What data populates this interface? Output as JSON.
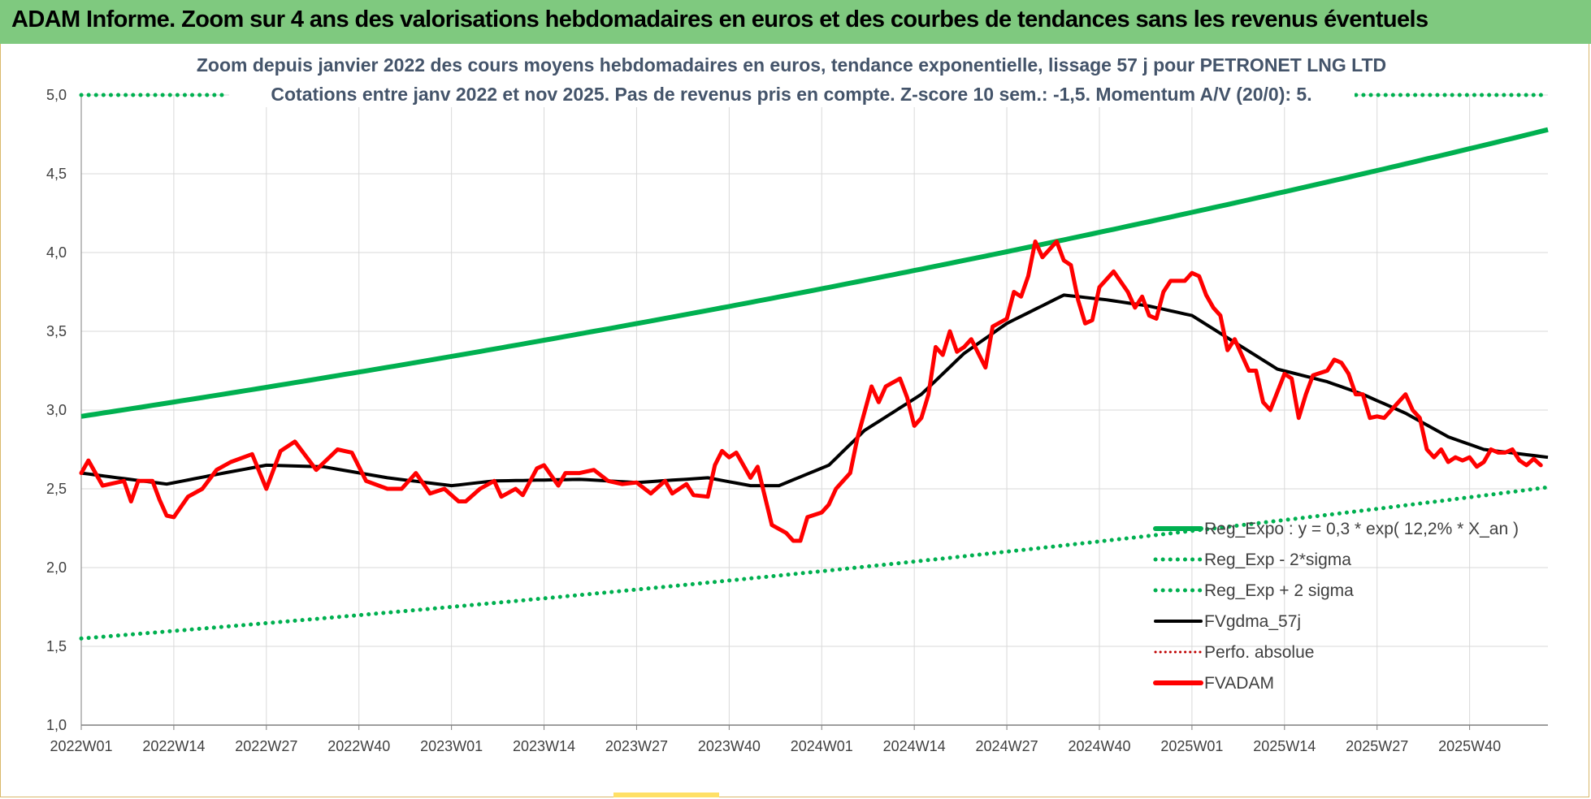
{
  "header": {
    "title": "ADAM Informe. Zoom sur 4 ans des valorisations hebdomadaires en euros et des courbes de tendances sans les revenus éventuels"
  },
  "colors": {
    "header_bg": "#7fc97f",
    "reg_expo": "#00b050",
    "band": "#00b050",
    "fvgdma": "#000000",
    "perfo": "#c00000",
    "fvadam": "#ff0000",
    "subtitle": "#44546a",
    "grid": "#d9d9d9"
  },
  "chart_data": {
    "type": "line",
    "title_line1": "Zoom depuis janvier 2022 des cours moyens hebdomadaires en euros, tendance exponentielle, lissage 57 j pour PETRONET LNG LTD",
    "title_line2": "Cotations entre janv 2022 et nov 2025. Pas de revenus pris en compte. Z-score 10 sem.: -1,5. Momentum A/V (20/0): 5.",
    "ylim": [
      1.0,
      5.0
    ],
    "y_ticks": [
      "1,0",
      "1,5",
      "2,0",
      "2,5",
      "3,0",
      "3,5",
      "4,0",
      "4,5",
      "5,0"
    ],
    "y_tick_values": [
      1.0,
      1.5,
      2.0,
      2.5,
      3.0,
      3.5,
      4.0,
      4.5,
      5.0
    ],
    "x_ticks": [
      "2022W01",
      "2022W14",
      "2022W27",
      "2022W40",
      "2023W01",
      "2023W14",
      "2023W27",
      "2023W40",
      "2024W01",
      "2024W14",
      "2024W27",
      "2024W40",
      "2025W01",
      "2025W14",
      "2025W27",
      "2025W40"
    ],
    "x_tick_index": [
      0,
      13,
      26,
      39,
      52,
      65,
      78,
      91,
      104,
      117,
      130,
      143,
      156,
      169,
      182,
      195
    ],
    "n_weeks": 206,
    "grid": true,
    "legend_position": "bottom-right",
    "legend": [
      {
        "key": "reg_expo",
        "label": "Reg_Expo : y = 0,3 * exp( 12,2% *  X_an )",
        "style": "solid-thick"
      },
      {
        "key": "band_low",
        "label": "Reg_Exp - 2*sigma",
        "style": "dotted-green"
      },
      {
        "key": "band_high",
        "label": "Reg_Exp + 2 sigma",
        "style": "dotted-green"
      },
      {
        "key": "fvgdma",
        "label": "FVgdma_57j",
        "style": "solid-black"
      },
      {
        "key": "perfo",
        "label": "Perfo. absolue",
        "style": "dotted-red"
      },
      {
        "key": "fvadam",
        "label": "FVADAM",
        "style": "solid-red-thick"
      }
    ],
    "series": {
      "reg_expo": {
        "start": 2.96,
        "end": 4.78
      },
      "band_low": {
        "start": 1.55,
        "end": 2.51
      },
      "band_high": {
        "start": 5.0,
        "end": 5.0,
        "visible_ranges": [
          [
            0,
            20
          ],
          [
            178,
            206
          ]
        ]
      },
      "fvgdma_keypoints": [
        [
          0,
          2.6
        ],
        [
          12,
          2.53
        ],
        [
          20,
          2.6
        ],
        [
          26,
          2.65
        ],
        [
          34,
          2.64
        ],
        [
          43,
          2.57
        ],
        [
          52,
          2.52
        ],
        [
          58,
          2.55
        ],
        [
          70,
          2.56
        ],
        [
          78,
          2.54
        ],
        [
          88,
          2.57
        ],
        [
          94,
          2.52
        ],
        [
          98,
          2.52
        ],
        [
          105,
          2.65
        ],
        [
          110,
          2.87
        ],
        [
          118,
          3.1
        ],
        [
          124,
          3.36
        ],
        [
          130,
          3.55
        ],
        [
          138,
          3.73
        ],
        [
          144,
          3.7
        ],
        [
          150,
          3.66
        ],
        [
          156,
          3.6
        ],
        [
          162,
          3.43
        ],
        [
          168,
          3.26
        ],
        [
          175,
          3.18
        ],
        [
          180,
          3.1
        ],
        [
          186,
          2.98
        ],
        [
          192,
          2.83
        ],
        [
          197,
          2.75
        ],
        [
          206,
          2.7
        ]
      ],
      "fvadam_keypoints": [
        [
          0,
          2.6
        ],
        [
          1,
          2.68
        ],
        [
          3,
          2.52
        ],
        [
          6,
          2.55
        ],
        [
          7,
          2.42
        ],
        [
          8,
          2.55
        ],
        [
          10,
          2.55
        ],
        [
          11,
          2.43
        ],
        [
          12,
          2.33
        ],
        [
          13,
          2.32
        ],
        [
          15,
          2.45
        ],
        [
          17,
          2.5
        ],
        [
          19,
          2.62
        ],
        [
          21,
          2.67
        ],
        [
          24,
          2.72
        ],
        [
          26,
          2.5
        ],
        [
          28,
          2.74
        ],
        [
          30,
          2.8
        ],
        [
          33,
          2.62
        ],
        [
          36,
          2.75
        ],
        [
          38,
          2.73
        ],
        [
          40,
          2.55
        ],
        [
          43,
          2.5
        ],
        [
          45,
          2.5
        ],
        [
          47,
          2.6
        ],
        [
          49,
          2.47
        ],
        [
          51,
          2.5
        ],
        [
          53,
          2.42
        ],
        [
          54,
          2.42
        ],
        [
          56,
          2.5
        ],
        [
          58,
          2.55
        ],
        [
          59,
          2.45
        ],
        [
          61,
          2.5
        ],
        [
          62,
          2.46
        ],
        [
          64,
          2.63
        ],
        [
          65,
          2.65
        ],
        [
          67,
          2.52
        ],
        [
          68,
          2.6
        ],
        [
          70,
          2.6
        ],
        [
          72,
          2.62
        ],
        [
          74,
          2.55
        ],
        [
          76,
          2.53
        ],
        [
          78,
          2.54
        ],
        [
          80,
          2.47
        ],
        [
          82,
          2.55
        ],
        [
          83,
          2.47
        ],
        [
          85,
          2.53
        ],
        [
          86,
          2.46
        ],
        [
          88,
          2.45
        ],
        [
          89,
          2.65
        ],
        [
          90,
          2.74
        ],
        [
          91,
          2.7
        ],
        [
          92,
          2.73
        ],
        [
          94,
          2.57
        ],
        [
          95,
          2.64
        ],
        [
          97,
          2.27
        ],
        [
          99,
          2.22
        ],
        [
          100,
          2.17
        ],
        [
          101,
          2.17
        ],
        [
          102,
          2.32
        ],
        [
          104,
          2.35
        ],
        [
          105,
          2.4
        ],
        [
          106,
          2.5
        ],
        [
          107,
          2.55
        ],
        [
          108,
          2.6
        ],
        [
          109,
          2.82
        ],
        [
          111,
          3.15
        ],
        [
          112,
          3.05
        ],
        [
          113,
          3.15
        ],
        [
          115,
          3.2
        ],
        [
          116,
          3.08
        ],
        [
          117,
          2.9
        ],
        [
          118,
          2.95
        ],
        [
          119,
          3.1
        ],
        [
          120,
          3.4
        ],
        [
          121,
          3.35
        ],
        [
          122,
          3.5
        ],
        [
          123,
          3.37
        ],
        [
          124,
          3.4
        ],
        [
          125,
          3.45
        ],
        [
          127,
          3.27
        ],
        [
          128,
          3.53
        ],
        [
          130,
          3.58
        ],
        [
          131,
          3.75
        ],
        [
          132,
          3.72
        ],
        [
          133,
          3.85
        ],
        [
          134,
          4.07
        ],
        [
          135,
          3.97
        ],
        [
          137,
          4.07
        ],
        [
          138,
          3.95
        ],
        [
          139,
          3.92
        ],
        [
          140,
          3.7
        ],
        [
          141,
          3.55
        ],
        [
          142,
          3.57
        ],
        [
          143,
          3.78
        ],
        [
          145,
          3.88
        ],
        [
          147,
          3.75
        ],
        [
          148,
          3.65
        ],
        [
          149,
          3.72
        ],
        [
          150,
          3.6
        ],
        [
          151,
          3.58
        ],
        [
          152,
          3.75
        ],
        [
          153,
          3.82
        ],
        [
          155,
          3.82
        ],
        [
          156,
          3.87
        ],
        [
          157,
          3.85
        ],
        [
          158,
          3.73
        ],
        [
          159,
          3.65
        ],
        [
          160,
          3.6
        ],
        [
          161,
          3.38
        ],
        [
          162,
          3.45
        ],
        [
          163,
          3.35
        ],
        [
          164,
          3.25
        ],
        [
          165,
          3.25
        ],
        [
          166,
          3.05
        ],
        [
          167,
          3.0
        ],
        [
          169,
          3.23
        ],
        [
          170,
          3.2
        ],
        [
          171,
          2.95
        ],
        [
          172,
          3.1
        ],
        [
          173,
          3.22
        ],
        [
          175,
          3.25
        ],
        [
          176,
          3.32
        ],
        [
          177,
          3.3
        ],
        [
          178,
          3.23
        ],
        [
          179,
          3.1
        ],
        [
          180,
          3.1
        ],
        [
          181,
          2.95
        ],
        [
          182,
          2.96
        ],
        [
          183,
          2.95
        ],
        [
          185,
          3.05
        ],
        [
          186,
          3.1
        ],
        [
          187,
          3.0
        ],
        [
          188,
          2.95
        ],
        [
          189,
          2.75
        ],
        [
          190,
          2.7
        ],
        [
          191,
          2.75
        ],
        [
          192,
          2.67
        ],
        [
          193,
          2.7
        ],
        [
          194,
          2.68
        ],
        [
          195,
          2.7
        ],
        [
          196,
          2.64
        ],
        [
          197,
          2.67
        ],
        [
          198,
          2.75
        ],
        [
          199,
          2.73
        ],
        [
          200,
          2.73
        ],
        [
          201,
          2.75
        ],
        [
          202,
          2.68
        ],
        [
          203,
          2.65
        ],
        [
          204,
          2.69
        ],
        [
          205,
          2.65
        ]
      ]
    }
  }
}
